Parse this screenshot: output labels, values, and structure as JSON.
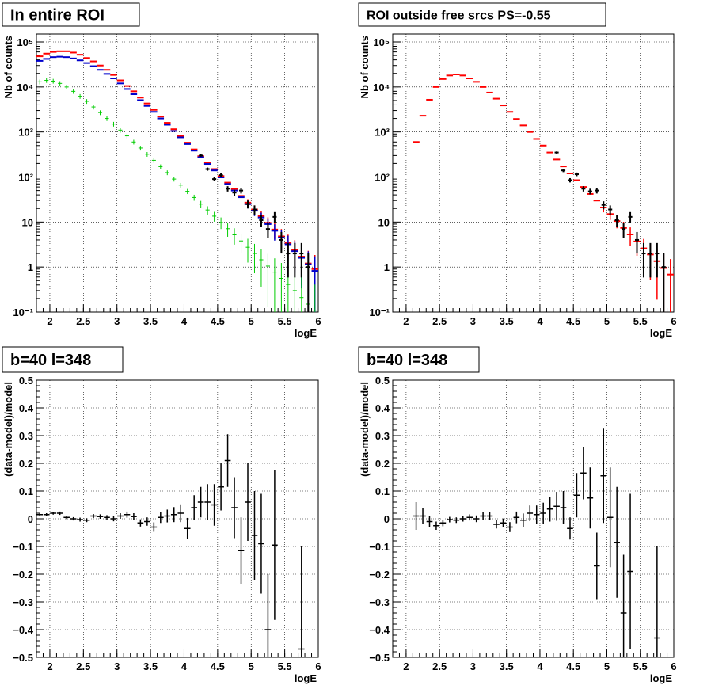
{
  "colors": {
    "data": "#000000",
    "total_model": "#ff0000",
    "model_blue": "#0000cc",
    "model_green": "#00cc00"
  },
  "chart_data": [
    {
      "type": "scatter",
      "title": "In entire ROI",
      "xlabel": "logE",
      "ylabel": "Nb of counts",
      "xlim": [
        1.8,
        6.0
      ],
      "ylim": [
        0.1,
        150000
      ],
      "ylog": true,
      "grid": true,
      "x_ticks": [
        "2",
        "2.5",
        "3",
        "3.5",
        "4",
        "4.5",
        "5",
        "5.5",
        "6"
      ],
      "y_ticks": [
        "10⁻¹",
        "1",
        "10",
        "10²",
        "10³",
        "10⁴",
        "10⁵"
      ],
      "x": [
        1.85,
        1.95,
        2.05,
        2.15,
        2.25,
        2.35,
        2.45,
        2.55,
        2.65,
        2.75,
        2.85,
        2.95,
        3.05,
        3.15,
        3.25,
        3.35,
        3.45,
        3.55,
        3.65,
        3.75,
        3.85,
        3.95,
        4.05,
        4.15,
        4.25,
        4.35,
        4.45,
        4.55,
        4.65,
        4.75,
        4.85,
        4.95,
        5.05,
        5.15,
        5.25,
        5.35,
        5.45,
        5.55,
        5.65,
        5.75,
        5.85,
        5.95
      ],
      "series": [
        {
          "color": "#ff0000",
          "style": "step",
          "values": [
            48000,
            55000,
            60000,
            62000,
            62000,
            58000,
            52000,
            44000,
            37000,
            30000,
            24000,
            18500,
            14000,
            10500,
            8000,
            5800,
            4300,
            3100,
            2200,
            1600,
            1150,
            820,
            580,
            410,
            290,
            210,
            150,
            105,
            75,
            54,
            38,
            27,
            19,
            13.5,
            9.6,
            6.8,
            4.8,
            3.4,
            2.4,
            1.7,
            1.2,
            0.9
          ]
        },
        {
          "color": "#0000cc",
          "style": "step",
          "values": [
            38000,
            42000,
            46000,
            47000,
            46000,
            43000,
            39000,
            34000,
            29000,
            24000,
            19500,
            15500,
            12000,
            9000,
            6900,
            5100,
            3800,
            2800,
            2000,
            1450,
            1050,
            760,
            540,
            385,
            275,
            195,
            140,
            98,
            70,
            50,
            35.5,
            25,
            17.8,
            12.6,
            9,
            6.4,
            4.5,
            3.2,
            2.25,
            1.6,
            1.15,
            0.82
          ]
        },
        {
          "color": "#00cc00",
          "style": "cross",
          "values": [
            13000,
            14000,
            13500,
            12000,
            10000,
            8000,
            6200,
            4800,
            3600,
            2700,
            2000,
            1500,
            1100,
            820,
            600,
            440,
            320,
            235,
            170,
            125,
            90,
            66,
            48,
            35,
            25,
            18.5,
            13.5,
            9.8,
            7.1,
            5.2,
            3.8,
            2.75,
            2,
            1.45,
            1.05,
            0.77,
            0.56,
            0.41,
            0.3,
            0.21,
            0.15,
            0.11
          ]
        },
        {
          "color": "#000000",
          "style": "data",
          "x": [
            4.25,
            4.35,
            4.45,
            4.55,
            4.65,
            4.75,
            4.85,
            4.95,
            5.05,
            5.15,
            5.25,
            5.35,
            5.45,
            5.55,
            5.65,
            5.75,
            5.85
          ],
          "values": [
            300,
            150,
            90,
            110,
            55,
            45,
            50,
            25,
            19,
            11,
            7,
            13,
            4,
            2,
            2,
            2,
            1
          ]
        }
      ]
    },
    {
      "type": "scatter",
      "title": "ROI outside free srcs PS=-0.55",
      "xlabel": "logE",
      "ylabel": "Nb of counts",
      "xlim": [
        1.8,
        6.0
      ],
      "ylim": [
        0.1,
        150000
      ],
      "ylog": true,
      "grid": true,
      "x_ticks": [
        "2",
        "2.5",
        "3",
        "3.5",
        "4",
        "4.5",
        "5",
        "5.5",
        "6"
      ],
      "y_ticks": [
        "10⁻¹",
        "1",
        "10",
        "10²",
        "10³",
        "10⁴",
        "10⁵"
      ],
      "x": [
        2.15,
        2.25,
        2.35,
        2.45,
        2.55,
        2.65,
        2.75,
        2.85,
        2.95,
        3.05,
        3.15,
        3.25,
        3.35,
        3.45,
        3.55,
        3.65,
        3.75,
        3.85,
        3.95,
        4.05,
        4.15,
        4.25,
        4.35,
        4.45,
        4.55,
        4.65,
        4.75,
        4.85,
        4.95,
        5.05,
        5.15,
        5.25,
        5.35,
        5.45,
        5.55,
        5.65,
        5.75,
        5.85,
        5.95
      ],
      "series": [
        {
          "color": "#ff0000",
          "style": "step",
          "values": [
            600,
            2300,
            5200,
            10000,
            15000,
            18000,
            19000,
            18000,
            15500,
            13000,
            10000,
            7500,
            5500,
            3900,
            2800,
            1950,
            1400,
            1000,
            700,
            500,
            350,
            245,
            172,
            120,
            85,
            60,
            42,
            30,
            21,
            15,
            10.5,
            7.4,
            5.3,
            3.7,
            2.6,
            1.9,
            1.35,
            0.95,
            0.68
          ]
        },
        {
          "color": "#000000",
          "style": "data",
          "x": [
            4.25,
            4.35,
            4.45,
            4.55,
            4.65,
            4.75,
            4.85,
            4.95,
            5.05,
            5.15,
            5.25,
            5.35,
            5.45,
            5.55,
            5.65,
            5.75,
            5.85
          ],
          "values": [
            350,
            140,
            85,
            115,
            55,
            48,
            50,
            24,
            19,
            11,
            7,
            13,
            4,
            2,
            2,
            2,
            1
          ]
        }
      ]
    },
    {
      "type": "scatter",
      "title": "b=40 l=348",
      "xlabel": "logE",
      "ylabel": "(data-model)/model",
      "xlim": [
        1.8,
        6.0
      ],
      "ylim": [
        -0.5,
        0.5
      ],
      "grid": true,
      "x_ticks": [
        "2",
        "2.5",
        "3",
        "3.5",
        "4",
        "4.5",
        "5",
        "5.5",
        "6"
      ],
      "y_ticks": [
        "-0.5",
        "-0.4",
        "-0.3",
        "-0.2",
        "-0.1",
        "0",
        "0.1",
        "0.2",
        "0.3",
        "0.4",
        "0.5"
      ],
      "points": [
        [
          1.85,
          0.015,
          0.005
        ],
        [
          1.95,
          0.015,
          0.005
        ],
        [
          2.05,
          0.02,
          0.005
        ],
        [
          2.15,
          0.02,
          0.006
        ],
        [
          2.25,
          0.005,
          0.006
        ],
        [
          2.35,
          0.0,
          0.006
        ],
        [
          2.45,
          -0.003,
          0.007
        ],
        [
          2.55,
          -0.005,
          0.007
        ],
        [
          2.65,
          0.01,
          0.007
        ],
        [
          2.75,
          0.008,
          0.008
        ],
        [
          2.85,
          0.005,
          0.008
        ],
        [
          2.95,
          0.0,
          0.009
        ],
        [
          3.05,
          0.01,
          0.01
        ],
        [
          3.15,
          0.015,
          0.011
        ],
        [
          3.25,
          0.008,
          0.012
        ],
        [
          3.35,
          -0.015,
          0.013
        ],
        [
          3.45,
          -0.01,
          0.015
        ],
        [
          3.55,
          -0.03,
          0.017
        ],
        [
          3.65,
          0.005,
          0.02
        ],
        [
          3.75,
          0.01,
          0.023
        ],
        [
          3.85,
          0.015,
          0.027
        ],
        [
          3.95,
          0.02,
          0.032
        ],
        [
          4.05,
          -0.035,
          0.038
        ],
        [
          4.15,
          0.04,
          0.045
        ],
        [
          4.25,
          0.06,
          0.055
        ],
        [
          4.35,
          0.06,
          0.065
        ],
        [
          4.45,
          0.05,
          0.075
        ],
        [
          4.55,
          0.115,
          0.085
        ],
        [
          4.65,
          0.21,
          0.095
        ],
        [
          4.75,
          0.04,
          0.11
        ],
        [
          4.85,
          -0.115,
          0.12
        ],
        [
          4.95,
          0.06,
          0.14
        ],
        [
          5.05,
          -0.06,
          0.16
        ],
        [
          5.15,
          -0.09,
          0.18
        ],
        [
          5.25,
          -0.4,
          0.2
        ],
        [
          5.35,
          -0.095,
          0.27
        ],
        [
          5.75,
          -0.47,
          0.37
        ]
      ]
    },
    {
      "type": "scatter",
      "title": "b=40 l=348",
      "xlabel": "logE",
      "ylabel": "(data-model)/model",
      "xlim": [
        1.8,
        6.0
      ],
      "ylim": [
        -0.5,
        0.5
      ],
      "grid": true,
      "x_ticks": [
        "2",
        "2.5",
        "3",
        "3.5",
        "4",
        "4.5",
        "5",
        "5.5",
        "6"
      ],
      "y_ticks": [
        "-0.5",
        "-0.4",
        "-0.3",
        "-0.2",
        "-0.1",
        "0",
        "0.1",
        "0.2",
        "0.3",
        "0.4",
        "0.5"
      ],
      "points": [
        [
          2.15,
          0.01,
          0.05
        ],
        [
          2.25,
          0.01,
          0.03
        ],
        [
          2.35,
          -0.01,
          0.02
        ],
        [
          2.45,
          -0.025,
          0.015
        ],
        [
          2.55,
          -0.015,
          0.012
        ],
        [
          2.65,
          -0.003,
          0.01
        ],
        [
          2.75,
          -0.005,
          0.01
        ],
        [
          2.85,
          0.0,
          0.01
        ],
        [
          2.95,
          0.005,
          0.011
        ],
        [
          3.05,
          0.0,
          0.012
        ],
        [
          3.15,
          0.01,
          0.013
        ],
        [
          3.25,
          0.01,
          0.014
        ],
        [
          3.35,
          -0.02,
          0.015
        ],
        [
          3.45,
          -0.015,
          0.016
        ],
        [
          3.55,
          -0.03,
          0.018
        ],
        [
          3.65,
          0.005,
          0.021
        ],
        [
          3.75,
          -0.005,
          0.024
        ],
        [
          3.85,
          0.02,
          0.028
        ],
        [
          3.95,
          0.015,
          0.033
        ],
        [
          4.05,
          0.02,
          0.038
        ],
        [
          4.15,
          0.035,
          0.045
        ],
        [
          4.25,
          0.045,
          0.052
        ],
        [
          4.35,
          0.04,
          0.06
        ],
        [
          4.45,
          -0.035,
          0.04
        ],
        [
          4.55,
          0.085,
          0.08
        ],
        [
          4.65,
          0.165,
          0.095
        ],
        [
          4.75,
          0.075,
          0.11
        ],
        [
          4.85,
          -0.17,
          0.12
        ],
        [
          4.95,
          0.155,
          0.17
        ],
        [
          5.05,
          0.005,
          0.18
        ],
        [
          5.15,
          -0.085,
          0.2
        ],
        [
          5.25,
          -0.34,
          0.21
        ],
        [
          5.35,
          -0.19,
          0.28
        ],
        [
          5.75,
          -0.43,
          0.33
        ]
      ]
    }
  ]
}
